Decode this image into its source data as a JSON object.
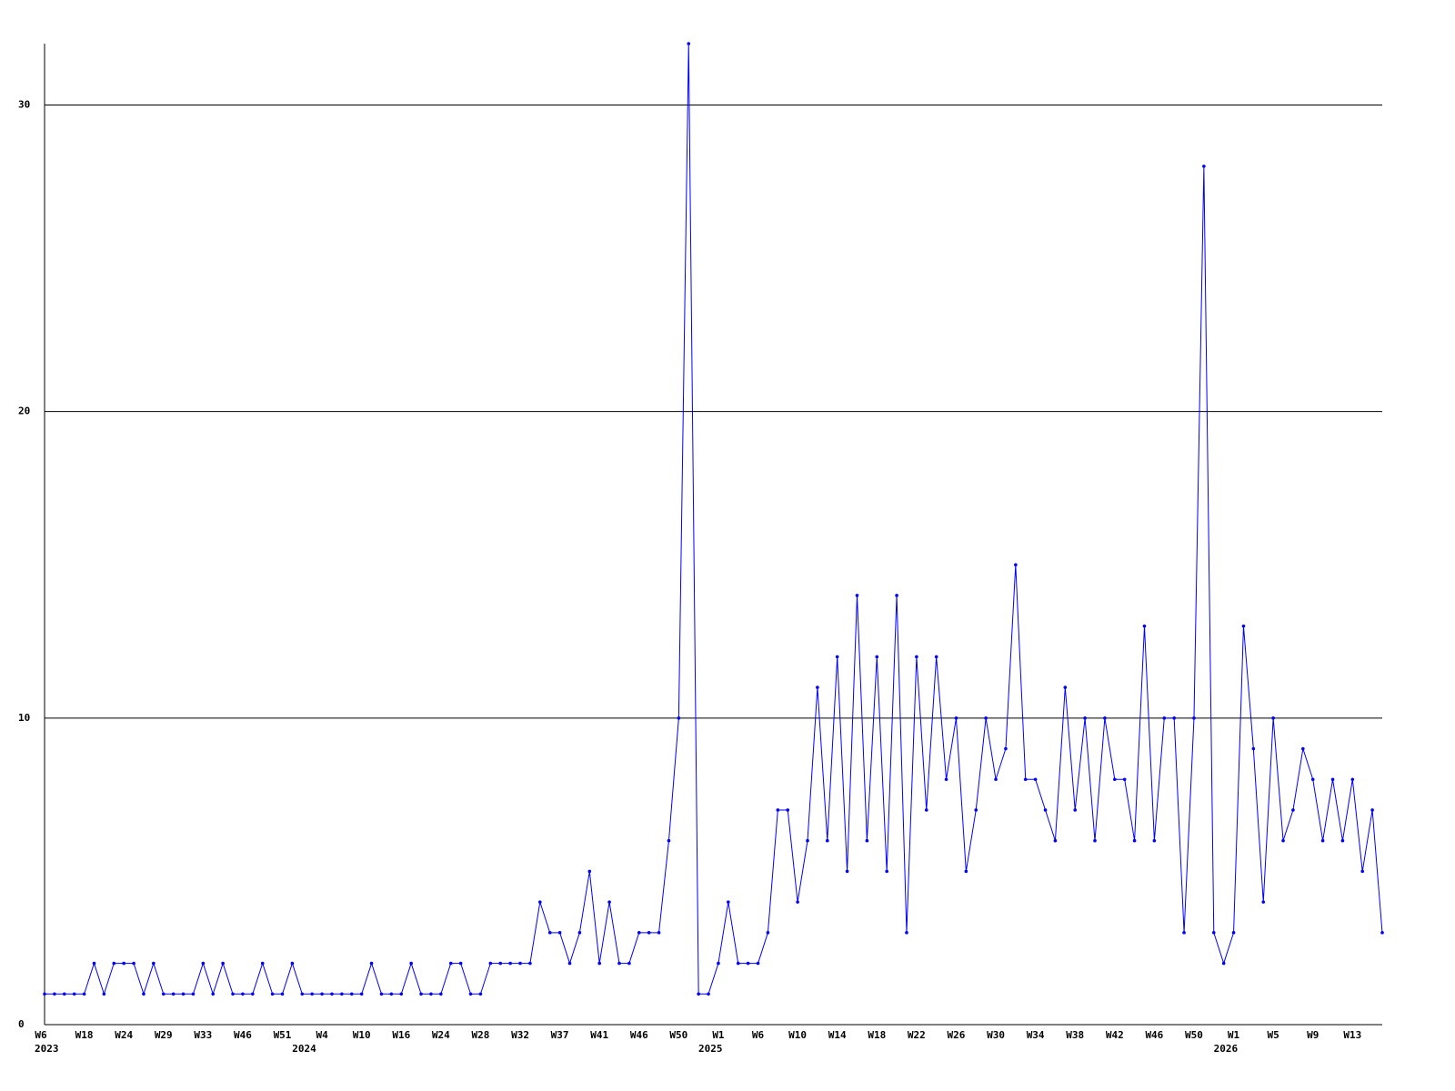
{
  "chart_data": {
    "type": "line",
    "categories": [
      "W6",
      null,
      null,
      null,
      "W18",
      null,
      null,
      null,
      "W24",
      null,
      null,
      null,
      "W29",
      null,
      null,
      null,
      "W33",
      null,
      null,
      null,
      "W46",
      null,
      null,
      null,
      "W51",
      null,
      null,
      null,
      "W4",
      null,
      null,
      null,
      "W10",
      null,
      null,
      null,
      "W16",
      null,
      null,
      null,
      "W24",
      null,
      null,
      null,
      "W28",
      null,
      null,
      null,
      "W32",
      null,
      null,
      null,
      "W37",
      null,
      null,
      null,
      "W41",
      null,
      null,
      null,
      "W46",
      null,
      null,
      null,
      "W50",
      null,
      null,
      null,
      "W1",
      null,
      null,
      null,
      "W6",
      null,
      null,
      null,
      "W10",
      null,
      null,
      null,
      "W14",
      null,
      null,
      null,
      "W18",
      null,
      null,
      null,
      "W22",
      null,
      null,
      null,
      "W26",
      null,
      null,
      null,
      "W30",
      null,
      null,
      null,
      "W34",
      null,
      null,
      null,
      "W38",
      null,
      null,
      null,
      "W42",
      null,
      null,
      null,
      "W46",
      null,
      null,
      null,
      "W50",
      null,
      null,
      null,
      "W1",
      null,
      null,
      null,
      "W5",
      null,
      null,
      null,
      "W9",
      null,
      null,
      null,
      "W13",
      null,
      null,
      null
    ],
    "year_labels": [
      {
        "value": 0,
        "label": "2023"
      },
      {
        "value": 26,
        "label": "2024"
      },
      {
        "value": 67,
        "label": "2025"
      },
      {
        "value": 119,
        "label": "2026"
      }
    ],
    "values": [
      1,
      1,
      1,
      1,
      1,
      2,
      1,
      2,
      2,
      2,
      1,
      2,
      1,
      1,
      1,
      1,
      2,
      1,
      2,
      1,
      1,
      1,
      2,
      1,
      1,
      2,
      1,
      1,
      1,
      1,
      1,
      1,
      1,
      2,
      1,
      1,
      1,
      2,
      1,
      1,
      1,
      2,
      2,
      1,
      1,
      2,
      2,
      2,
      2,
      2,
      4,
      3,
      3,
      2,
      3,
      5,
      2,
      4,
      2,
      2,
      3,
      3,
      3,
      6,
      10,
      32,
      1,
      1,
      2,
      4,
      2,
      2,
      2,
      3,
      7,
      7,
      4,
      6,
      11,
      6,
      12,
      5,
      14,
      6,
      12,
      5,
      14,
      3,
      12,
      7,
      12,
      8,
      10,
      5,
      7,
      10,
      8,
      9,
      15,
      8,
      8,
      7,
      6,
      11,
      7,
      10,
      6,
      10,
      8,
      8,
      6,
      13,
      6,
      10,
      10,
      3,
      10,
      28,
      3,
      2,
      3,
      13,
      9,
      4,
      10,
      6,
      7,
      9,
      8,
      6,
      8,
      6,
      8,
      5,
      7,
      3
    ],
    "color": "#0000ff",
    "ylim": [
      0,
      32
    ],
    "yticks": [
      0,
      10,
      20,
      30
    ],
    "grid": true
  }
}
